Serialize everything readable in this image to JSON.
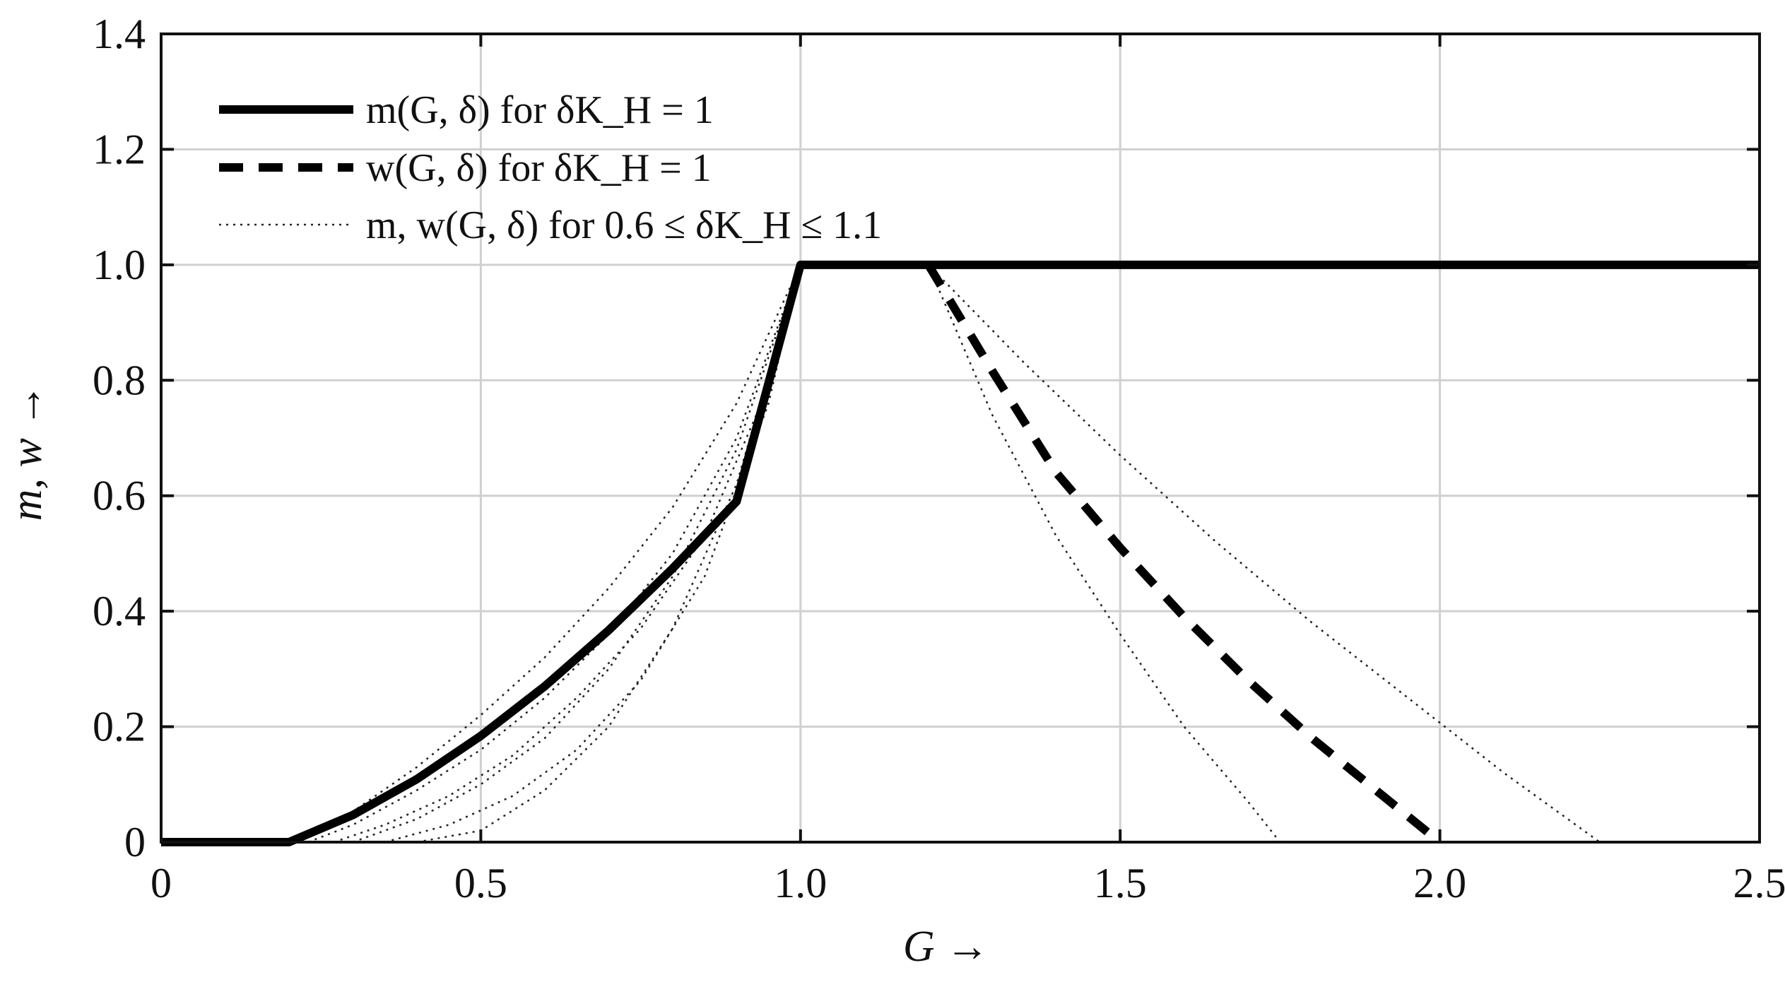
{
  "chart_data": {
    "type": "line",
    "xlabel": "G →",
    "ylabel": "m, w →",
    "xlim": [
      0,
      2.5
    ],
    "ylim": [
      0,
      1.4
    ],
    "grid": true,
    "legend_position": "top-left",
    "xticks": [
      "0",
      "0.5",
      "1.0",
      "1.5",
      "2.0",
      "2.5"
    ],
    "xtick_values": [
      0,
      0.5,
      1.0,
      1.5,
      2.0,
      2.5
    ],
    "yticks": [
      "0",
      "0.2",
      "0.4",
      "0.6",
      "0.8",
      "1.0",
      "1.2",
      "1.4"
    ],
    "ytick_values": [
      0,
      0.2,
      0.4,
      0.6,
      0.8,
      1.0,
      1.2,
      1.4
    ],
    "legend": [
      "m(G, δ) for δK_H = 1",
      "w(G, δ) for δK_H = 1",
      "m, w(G, δ) for 0.6 ≤ δK_H ≤ 1.1"
    ],
    "series": [
      {
        "name": "m(G, δ) for δK_H = 1",
        "style": "solid",
        "x": [
          0,
          0.2,
          0.3,
          0.4,
          0.5,
          0.6,
          0.7,
          0.8,
          0.9,
          1.0,
          1.2,
          1.5,
          2.0,
          2.5
        ],
        "y": [
          0,
          0,
          0.047,
          0.109,
          0.184,
          0.27,
          0.367,
          0.474,
          0.59,
          1.0,
          1.0,
          1.0,
          1.0,
          1.0
        ]
      },
      {
        "name": "w(G, δ) for δK_H = 1",
        "style": "dashed",
        "x": [
          1.2,
          1.3,
          1.4,
          1.5,
          1.6,
          1.7,
          1.8,
          1.9,
          2.0
        ],
        "y": [
          1.0,
          0.816,
          0.64,
          0.51,
          0.39,
          0.28,
          0.18,
          0.09,
          0.0
        ]
      },
      {
        "name": "m, w(G, δ) for 0.6 ≤ δK_H ≤ 1.1",
        "style": "dotted",
        "x": [
          0.21,
          0.3,
          0.4,
          0.5,
          0.6,
          0.7,
          0.8,
          0.9,
          1.0
        ],
        "y": [
          0,
          0.053,
          0.13,
          0.22,
          0.32,
          0.44,
          0.58,
          0.76,
          1.0
        ]
      },
      {
        "name": "m, w(G, δ) for 0.6 ≤ δK_H ≤ 1.1",
        "style": "dotted",
        "x": [
          0.23,
          0.3,
          0.4,
          0.5,
          0.6,
          0.7,
          0.8,
          0.9,
          1.0
        ],
        "y": [
          0,
          0.03,
          0.09,
          0.16,
          0.25,
          0.36,
          0.5,
          0.7,
          1.0
        ]
      },
      {
        "name": "m, w(G, δ) for 0.6 ≤ δK_H ≤ 1.1",
        "style": "dotted",
        "x": [
          0.27,
          0.35,
          0.45,
          0.55,
          0.65,
          0.75,
          0.85,
          0.95,
          1.0
        ],
        "y": [
          0,
          0.03,
          0.08,
          0.15,
          0.25,
          0.37,
          0.53,
          0.79,
          1.0
        ]
      },
      {
        "name": "m, w(G, δ) for 0.6 ≤ δK_H ≤ 1.1",
        "style": "dotted",
        "x": [
          0.3,
          0.4,
          0.5,
          0.6,
          0.7,
          0.8,
          0.9,
          1.0
        ],
        "y": [
          0,
          0.04,
          0.1,
          0.18,
          0.3,
          0.46,
          0.68,
          1.0
        ]
      },
      {
        "name": "m, w(G, δ) for 0.6 ≤ δK_H ≤ 1.1",
        "style": "dotted",
        "x": [
          0.35,
          0.45,
          0.55,
          0.65,
          0.75,
          0.85,
          0.95,
          1.0
        ],
        "y": [
          0,
          0.03,
          0.08,
          0.16,
          0.28,
          0.46,
          0.76,
          1.0
        ]
      },
      {
        "name": "m, w(G, δ) for 0.6 ≤ δK_H ≤ 1.1",
        "style": "dotted",
        "x": [
          0.4,
          0.5,
          0.6,
          0.7,
          0.8,
          0.9,
          1.0
        ],
        "y": [
          0,
          0.02,
          0.09,
          0.2,
          0.37,
          0.62,
          1.0
        ]
      },
      {
        "name": "m, w(G, δ) for 0.6 ≤ δK_H ≤ 1.1",
        "style": "dotted",
        "x": [
          1.2,
          1.3,
          1.4,
          1.5,
          1.6,
          1.7,
          1.75
        ],
        "y": [
          1.0,
          0.74,
          0.53,
          0.36,
          0.2,
          0.07,
          0.0
        ]
      },
      {
        "name": "m, w(G, δ) for 0.6 ≤ δK_H ≤ 1.1",
        "style": "dotted",
        "x": [
          1.2,
          1.35,
          1.5,
          1.65,
          1.8,
          1.95,
          2.1,
          2.25
        ],
        "y": [
          1.0,
          0.83,
          0.67,
          0.52,
          0.38,
          0.25,
          0.12,
          0.0
        ]
      }
    ]
  }
}
